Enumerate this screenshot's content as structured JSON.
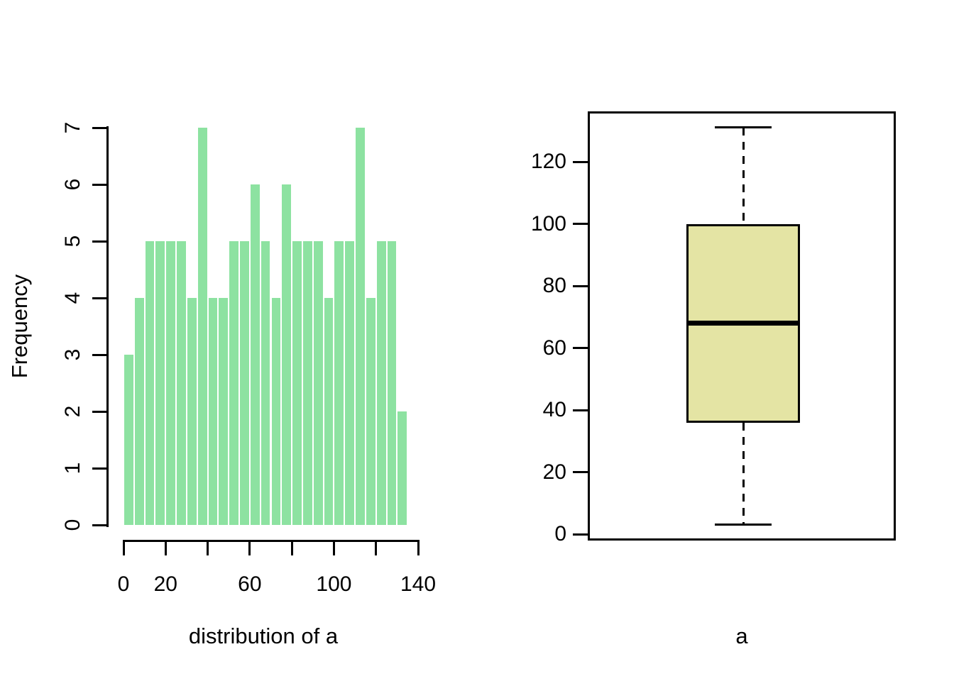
{
  "page": {
    "background_color": "#FFFFFF",
    "foreground_color": "#000000",
    "description": "R base-graphics figure with two side-by-side panels: histogram of variable a, and boxplot of a"
  },
  "chart_data": [
    {
      "type": "bar",
      "subtype": "histogram",
      "title": "",
      "xlabel": "distribution of a",
      "ylabel": "Frequency",
      "bin_start": 0,
      "bin_width": 5,
      "counts": [
        3,
        4,
        5,
        5,
        5,
        5,
        4,
        7,
        4,
        4,
        5,
        5,
        6,
        5,
        4,
        6,
        5,
        5,
        5,
        4,
        5,
        5,
        7,
        4,
        5,
        5,
        2
      ],
      "bin_edges": [
        0,
        5,
        10,
        15,
        20,
        25,
        30,
        35,
        40,
        45,
        50,
        55,
        60,
        65,
        70,
        75,
        80,
        85,
        90,
        95,
        100,
        105,
        110,
        115,
        120,
        125,
        130,
        135
      ],
      "xlim": [
        0,
        140
      ],
      "ylim": [
        0,
        7
      ],
      "x_ticks": [
        0,
        20,
        40,
        60,
        80,
        100,
        120,
        140
      ],
      "x_tick_labels": [
        "0",
        "20",
        "",
        "60",
        "",
        "100",
        "",
        "140"
      ],
      "y_ticks": [
        0,
        1,
        2,
        3,
        4,
        5,
        6,
        7
      ],
      "y_tick_labels": [
        "0",
        "1",
        "2",
        "3",
        "4",
        "5",
        "6",
        "7"
      ],
      "y_tick_label_rotation_deg": -90,
      "grid": "off",
      "legend": "none",
      "bar_color": "#8DE2A1",
      "bar_border_color": "#FFFFFF",
      "axis_color": "#000000"
    },
    {
      "type": "boxplot",
      "title": "",
      "xlabel": "a",
      "ylabel": "",
      "stats": {
        "whisker_low": 3,
        "q1": 36,
        "median": 68,
        "q3": 100,
        "whisker_high": 131
      },
      "outliers": [],
      "ylim": [
        0,
        135
      ],
      "y_ticks": [
        0,
        20,
        40,
        60,
        80,
        100,
        120
      ],
      "y_tick_labels": [
        "0",
        "20",
        "40",
        "60",
        "80",
        "100",
        "120"
      ],
      "y_tick_label_rotation_deg": 0,
      "grid": "off",
      "frame": "full-box",
      "box_fill_color": "#E4E4A4",
      "line_color": "#000000",
      "whisker_style": "dashed"
    }
  ]
}
